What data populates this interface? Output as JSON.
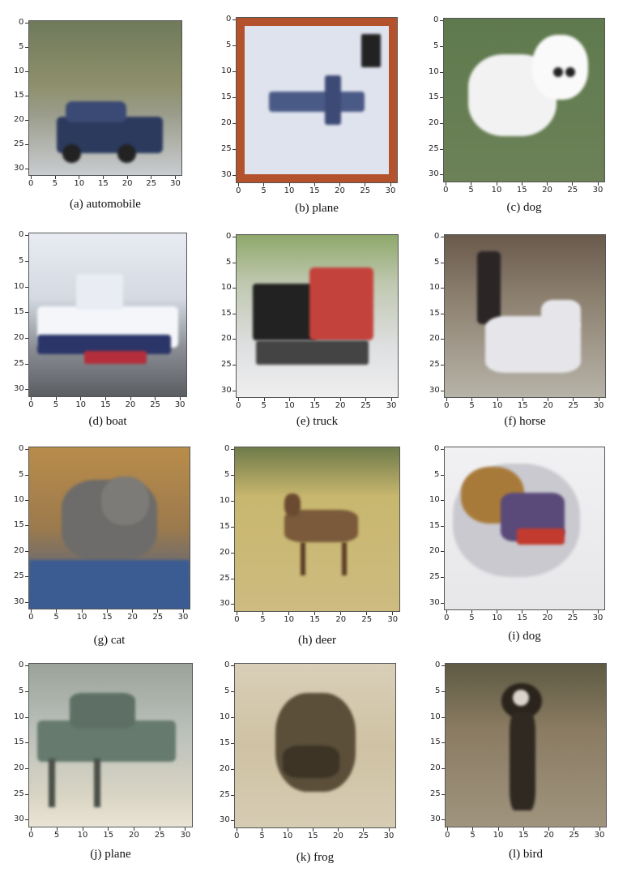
{
  "ticks": [
    "0",
    "5",
    "10",
    "15",
    "20",
    "25",
    "30"
  ],
  "panels": [
    {
      "caption": "(a) automobile",
      "scene": "car"
    },
    {
      "caption": "(b) plane",
      "scene": "plane1"
    },
    {
      "caption": "(c) dog",
      "scene": "dog1"
    },
    {
      "caption": "(d) boat",
      "scene": "boat"
    },
    {
      "caption": "(e) truck",
      "scene": "truck"
    },
    {
      "caption": "(f) horse",
      "scene": "horse"
    },
    {
      "caption": "(g) cat",
      "scene": "cat"
    },
    {
      "caption": "(h) deer",
      "scene": "deer"
    },
    {
      "caption": "(i) dog",
      "scene": "dog2"
    },
    {
      "caption": "(j) plane",
      "scene": "plane2"
    },
    {
      "caption": "(k) frog",
      "scene": "frog"
    },
    {
      "caption": "(l) bird",
      "scene": "bird"
    }
  ]
}
